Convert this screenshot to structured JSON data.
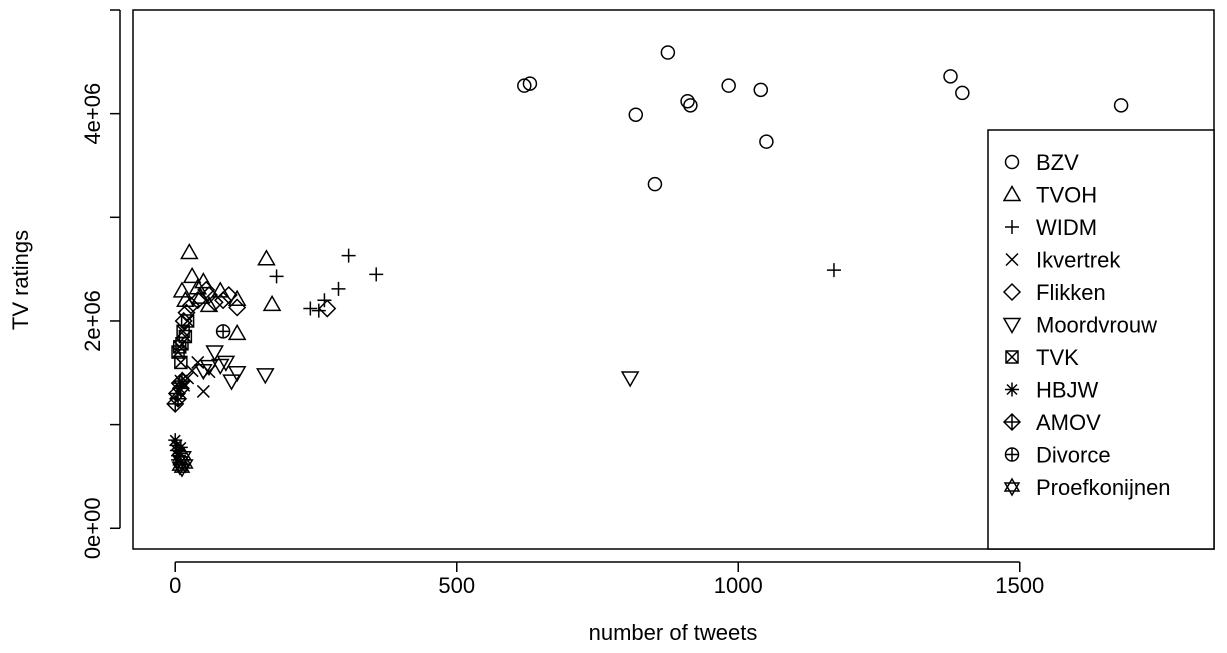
{
  "chart_data": {
    "type": "scatter",
    "xlabel": "number of tweets",
    "ylabel": "TV ratings",
    "xlim": [
      -75,
      1845
    ],
    "ylim": [
      -200000,
      5000000
    ],
    "x_ticks": [
      {
        "value": 0,
        "label": "0"
      },
      {
        "value": 500,
        "label": "500"
      },
      {
        "value": 1000,
        "label": "1000"
      },
      {
        "value": 1500,
        "label": "1500"
      }
    ],
    "y_ticks": [
      {
        "value": 0,
        "label": "0e+00"
      },
      {
        "value": 1000000,
        "label": ""
      },
      {
        "value": 2000000,
        "label": "2e+06"
      },
      {
        "value": 3000000,
        "label": ""
      },
      {
        "value": 4000000,
        "label": "4e+06"
      },
      {
        "value": 5000000,
        "label": ""
      }
    ],
    "legend_position": "right",
    "series": [
      {
        "name": "BZV",
        "marker": "circle",
        "points": [
          [
            620,
            4270000
          ],
          [
            630,
            4290000
          ],
          [
            818,
            3990000
          ],
          [
            852,
            3320000
          ],
          [
            875,
            4590000
          ],
          [
            910,
            4120000
          ],
          [
            915,
            4080000
          ],
          [
            983,
            4270000
          ],
          [
            1040,
            4230000
          ],
          [
            1050,
            3730000
          ],
          [
            1377,
            4360000
          ],
          [
            1398,
            4200000
          ],
          [
            1680,
            4080000
          ]
        ]
      },
      {
        "name": "TVOH",
        "marker": "triangle",
        "points": [
          [
            12,
            2290000
          ],
          [
            18,
            2200000
          ],
          [
            25,
            2660000
          ],
          [
            30,
            2430000
          ],
          [
            40,
            2320000
          ],
          [
            45,
            2230000
          ],
          [
            50,
            2380000
          ],
          [
            60,
            2150000
          ],
          [
            80,
            2290000
          ],
          [
            110,
            2210000
          ],
          [
            110,
            1880000
          ],
          [
            162,
            2600000
          ],
          [
            172,
            2160000
          ]
        ]
      },
      {
        "name": "WIDM",
        "marker": "plus",
        "points": [
          [
            240,
            2120000
          ],
          [
            255,
            2100000
          ],
          [
            265,
            2200000
          ],
          [
            290,
            2310000
          ],
          [
            308,
            2630000
          ],
          [
            357,
            2450000
          ],
          [
            180,
            2430000
          ],
          [
            1170,
            2490000
          ]
        ]
      },
      {
        "name": "Ikvertrek",
        "marker": "cross",
        "points": [
          [
            10,
            1420000
          ],
          [
            15,
            1380000
          ],
          [
            22,
            1450000
          ],
          [
            30,
            1520000
          ],
          [
            40,
            1600000
          ],
          [
            50,
            1320000
          ],
          [
            60,
            1510000
          ]
        ]
      },
      {
        "name": "Flikken",
        "marker": "diamond",
        "points": [
          [
            15,
            2000000
          ],
          [
            20,
            2080000
          ],
          [
            28,
            2150000
          ],
          [
            40,
            2200000
          ],
          [
            55,
            2300000
          ],
          [
            60,
            2250000
          ],
          [
            70,
            2180000
          ],
          [
            85,
            2200000
          ],
          [
            95,
            2250000
          ],
          [
            110,
            2130000
          ],
          [
            270,
            2120000
          ]
        ]
      },
      {
        "name": "Moordvrouw",
        "marker": "triangle-down",
        "points": [
          [
            50,
            1520000
          ],
          [
            60,
            1560000
          ],
          [
            70,
            1700000
          ],
          [
            80,
            1570000
          ],
          [
            90,
            1600000
          ],
          [
            100,
            1420000
          ],
          [
            110,
            1500000
          ],
          [
            160,
            1480000
          ],
          [
            808,
            1450000
          ]
        ]
      },
      {
        "name": "TVK",
        "marker": "box-x",
        "points": [
          [
            5,
            1700000
          ],
          [
            8,
            1750000
          ],
          [
            10,
            1600000
          ],
          [
            12,
            1780000
          ],
          [
            14,
            1900000
          ],
          [
            18,
            1850000
          ],
          [
            22,
            2000000
          ]
        ]
      },
      {
        "name": "HBJW",
        "marker": "asterisk",
        "points": [
          [
            0,
            850000
          ],
          [
            2,
            800000
          ],
          [
            3,
            750000
          ],
          [
            5,
            700000
          ],
          [
            5,
            660000
          ],
          [
            8,
            720000
          ],
          [
            10,
            780000
          ]
        ]
      },
      {
        "name": "AMOV",
        "marker": "diamond-plus",
        "points": [
          [
            0,
            1200000
          ],
          [
            3,
            1300000
          ],
          [
            5,
            1250000
          ],
          [
            8,
            1400000
          ],
          [
            10,
            1350000
          ],
          [
            12,
            1420000
          ]
        ]
      },
      {
        "name": "Divorce",
        "marker": "circle-plus",
        "points": [
          [
            85,
            1900000
          ]
        ]
      },
      {
        "name": "Proefkonijnen",
        "marker": "star-david",
        "points": [
          [
            8,
            600000
          ],
          [
            10,
            650000
          ],
          [
            12,
            580000
          ],
          [
            15,
            700000
          ],
          [
            18,
            620000
          ]
        ]
      }
    ]
  }
}
